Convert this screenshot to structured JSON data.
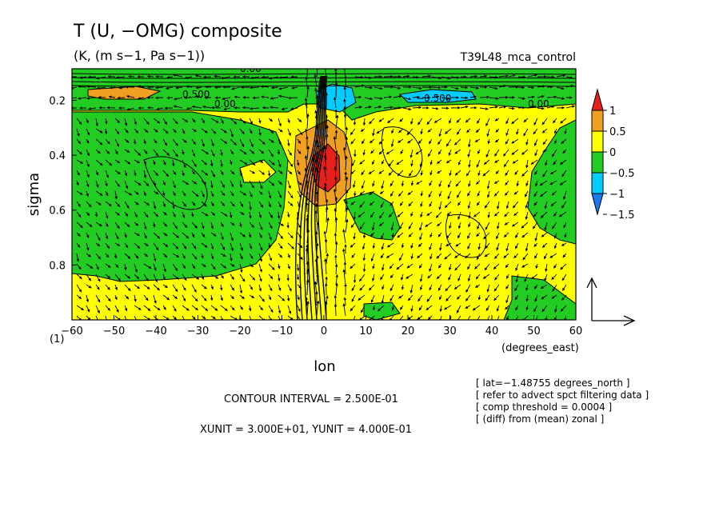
{
  "title": "T (U, −OMG) composite",
  "subtitle": "(K, (m s−1, Pa s−1))",
  "run_name": "T39L48_mca_control",
  "xlabel": "lon",
  "xunit_label": "(degrees_east)",
  "ylabel": "sigma",
  "corner_label": "(1)",
  "contour_interval_text": "CONTOUR INTERVAL = 2.500E-01",
  "unit_text": "XUNIT = 3.000E+01, YUNIT = 4.000E-01",
  "info_lines": [
    "[ lat=−1.48755 degrees_north ]",
    "[ refer to advect spct filtering data ]",
    "[ comp threshold = 0.0004 ]",
    "[ (diff) from (mean) zonal ]"
  ],
  "contour_labels": [
    "0.00",
    "0.500",
    "−0.500",
    "0.00",
    "0.00"
  ],
  "colors": {
    "red": "#e8201c",
    "orange": "#f0a020",
    "yellow": "#ffff00",
    "green": "#22cc22",
    "cyan": "#00ccff",
    "blue": "#1e78f0"
  },
  "chart_data": {
    "type": "heatmap",
    "xlim": [
      -60,
      60
    ],
    "ylim": [
      0,
      1
    ],
    "y_inverted": true,
    "x_ticks": [
      -60,
      -50,
      -40,
      -30,
      -20,
      -10,
      0,
      10,
      20,
      30,
      40,
      50,
      60
    ],
    "x_tick_labels": [
      "−60",
      "−50",
      "−40",
      "−30",
      "−20",
      "−10",
      "0",
      "10",
      "20",
      "30",
      "40",
      "50",
      "60"
    ],
    "y_ticks": [
      0.2,
      0.4,
      0.6,
      0.8
    ],
    "y_tick_labels": [
      "0.2",
      "0.4",
      "0.6",
      "0.8"
    ],
    "colorbar": {
      "levels": [
        1,
        0.5,
        0,
        -0.5,
        -1,
        -1.5
      ],
      "labels": [
        "1",
        "0.5",
        "0",
        "−0.5",
        "−1",
        "−1.5"
      ]
    },
    "fields": [
      {
        "name": "temperature_anomaly",
        "units": "K"
      },
      {
        "name": "wind_vectors",
        "components": [
          "U",
          "-OMG"
        ]
      }
    ]
  }
}
